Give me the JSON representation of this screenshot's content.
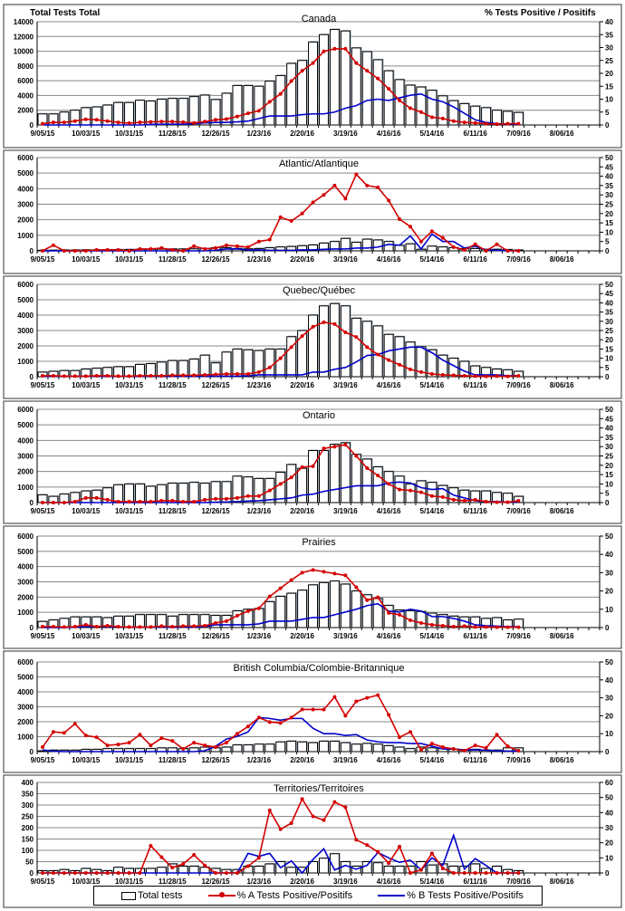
{
  "header": {
    "left_axis_title": "Total Tests Total",
    "right_axis_title": "% Tests Positive / Positifs"
  },
  "legend": {
    "total": "Total tests",
    "a": "% A Tests Positive/Positifs",
    "b": "% B Tests Positive/Positifs"
  },
  "colors": {
    "a": "#d40000",
    "b": "#0000cc",
    "bar": "#ffffff"
  },
  "chart_data": [
    {
      "type": "bar+line",
      "title": "Canada",
      "x_tick_labels": [
        "9/05/15",
        "10/03/15",
        "10/31/15",
        "11/28/15",
        "12/26/15",
        "1/23/16",
        "2/20/16",
        "3/19/16",
        "4/16/16",
        "5/14/16",
        "6/11/16",
        "7/09/16",
        "8/06/16"
      ],
      "weeks_on_axis": 52,
      "ylim": [
        0,
        14000
      ],
      "ystep": 2000,
      "y2lim": [
        0,
        40
      ],
      "y2step": 5,
      "y_tick_labels": [
        "0",
        "2000",
        "4000",
        "6000",
        "8000",
        "10000",
        "12000",
        "14000"
      ],
      "y2_tick_labels": [
        "0",
        "5",
        "10",
        "15",
        "20",
        "25",
        "30",
        "35",
        "40"
      ],
      "total_tests": [
        1500,
        1500,
        1750,
        2000,
        2350,
        2450,
        2700,
        3050,
        3050,
        3350,
        3250,
        3500,
        3600,
        3600,
        3850,
        4050,
        3450,
        4300,
        5350,
        5350,
        5250,
        5950,
        6700,
        8350,
        8750,
        11250,
        12250,
        12950,
        12750,
        10450,
        9950,
        8850,
        7350,
        6150,
        5400,
        5150,
        4700,
        3950,
        3300,
        2900,
        2550,
        2350,
        2000,
        1850,
        1700
      ],
      "pct_a": [
        0.5,
        1,
        1,
        1.5,
        2.2,
        2,
        1.5,
        1,
        0.7,
        1,
        1.2,
        1.3,
        1.3,
        1.1,
        0.8,
        1.3,
        2,
        2.3,
        3.3,
        4.5,
        5.5,
        9,
        12,
        17,
        21,
        24,
        28.5,
        29.5,
        29.5,
        24,
        21,
        18,
        14,
        9.5,
        6.5,
        5,
        3,
        2.5,
        1.5,
        1,
        0.8,
        0.5,
        0.3,
        0.5,
        0.5
      ],
      "pct_b": [
        0,
        0,
        0,
        0,
        0,
        0,
        0,
        0,
        0,
        0,
        0.2,
        0.3,
        0.3,
        0.3,
        0.5,
        0.8,
        1,
        1,
        1.2,
        1.5,
        2.5,
        3.5,
        3.5,
        3.5,
        4,
        4.3,
        4.3,
        5,
        6.5,
        7.5,
        9.5,
        10,
        9.5,
        10.5,
        11.5,
        12,
        10,
        9,
        7,
        4.5,
        2,
        1,
        0.5,
        0.3,
        0.3
      ]
    },
    {
      "type": "bar+line",
      "title": "Atlantic/Atlantique",
      "x_tick_labels": [
        "9/05/15",
        "10/03/15",
        "10/31/15",
        "11/28/15",
        "12/26/15",
        "1/23/16",
        "2/20/16",
        "3/19/16",
        "4/16/16",
        "5/14/16",
        "6/11/16",
        "7/09/16",
        "8/06/16"
      ],
      "weeks_on_axis": 52,
      "ylim": [
        0,
        6000
      ],
      "ystep": 1000,
      "y2lim": [
        0,
        50
      ],
      "y2step": 5,
      "y_tick_labels": [
        "0",
        "1000",
        "2000",
        "3000",
        "4000",
        "5000",
        "6000"
      ],
      "y2_tick_labels": [
        "0",
        "5",
        "10",
        "15",
        "20",
        "25",
        "30",
        "35",
        "40",
        "45",
        "50"
      ],
      "total_tests": [
        30,
        40,
        50,
        50,
        60,
        60,
        70,
        80,
        90,
        100,
        100,
        110,
        120,
        120,
        130,
        150,
        200,
        200,
        150,
        130,
        150,
        200,
        250,
        280,
        330,
        380,
        500,
        600,
        800,
        550,
        750,
        700,
        600,
        350,
        450,
        100,
        300,
        250,
        200,
        150,
        150,
        100,
        100,
        80,
        50
      ],
      "pct_a": [
        0,
        3,
        0,
        0,
        0,
        0.5,
        0.5,
        0.5,
        0,
        1,
        1,
        1.5,
        0.5,
        0,
        2.5,
        1,
        1.5,
        3,
        2.5,
        2,
        5,
        6,
        18,
        16,
        20,
        26,
        30,
        35,
        28,
        41,
        35,
        34,
        27,
        17,
        13,
        5,
        10.5,
        7,
        2,
        0.5,
        3.5,
        0,
        3.5,
        0,
        0
      ],
      "pct_b": [
        0,
        0,
        0,
        0,
        0,
        0,
        0,
        0,
        0,
        0,
        0,
        0,
        0,
        0,
        0,
        0,
        0.3,
        1,
        1,
        0.5,
        0.5,
        0.3,
        0.3,
        0.3,
        0.5,
        0.5,
        0.8,
        1,
        1,
        1.5,
        1.5,
        2,
        3.5,
        3,
        8,
        1,
        9,
        5,
        5,
        1.5,
        2.5,
        0.5,
        0.3,
        0,
        0
      ]
    },
    {
      "type": "bar+line",
      "title": "Quebec/Québec",
      "x_tick_labels": [
        "9/05/15",
        "10/03/15",
        "10/31/15",
        "11/28/15",
        "12/26/15",
        "1/23/16",
        "2/20/16",
        "3/19/16",
        "4/16/16",
        "5/14/16",
        "6/11/16",
        "7/09/16",
        "8/06/16"
      ],
      "weeks_on_axis": 52,
      "ylim": [
        0,
        6000
      ],
      "ystep": 1000,
      "y2lim": [
        0,
        50
      ],
      "y2step": 5,
      "y_tick_labels": [
        "0",
        "1000",
        "2000",
        "3000",
        "4000",
        "5000",
        "6000"
      ],
      "y2_tick_labels": [
        "0",
        "5",
        "10",
        "15",
        "20",
        "25",
        "30",
        "35",
        "40",
        "45",
        "50"
      ],
      "total_tests": [
        300,
        350,
        400,
        400,
        500,
        550,
        600,
        650,
        650,
        800,
        850,
        950,
        1050,
        1050,
        1150,
        1400,
        900,
        1600,
        1800,
        1750,
        1700,
        1800,
        1800,
        2600,
        3000,
        4000,
        4600,
        4750,
        4600,
        3800,
        3600,
        3300,
        2750,
        2600,
        2250,
        1950,
        1750,
        1400,
        1200,
        1000,
        700,
        600,
        500,
        450,
        350
      ],
      "pct_a": [
        0.5,
        0.5,
        0.3,
        0.3,
        0.3,
        0.5,
        0.5,
        0.3,
        0.3,
        0.5,
        0.5,
        0.5,
        0.8,
        0.8,
        0.8,
        1,
        1.2,
        1.5,
        1.5,
        1.5,
        2.5,
        5,
        10,
        16,
        22,
        27,
        29.5,
        28.5,
        24,
        21.5,
        16,
        12,
        9,
        6.5,
        4,
        2.5,
        1.5,
        1,
        0.8,
        0.5,
        0.3,
        0.2,
        0.3,
        0.2,
        0.5
      ],
      "pct_b": [
        0.2,
        0.2,
        0.2,
        0.2,
        0.2,
        0.2,
        0.2,
        0.2,
        0.2,
        0.2,
        0.3,
        0.3,
        0.3,
        0.3,
        0.3,
        0.3,
        0.3,
        0.3,
        0.3,
        0.5,
        1,
        1,
        1,
        1,
        1,
        2.5,
        2.5,
        4,
        5,
        8,
        11.5,
        12,
        14,
        15,
        16,
        16,
        13,
        9,
        6,
        3,
        1,
        1,
        1,
        0.5,
        0.5
      ]
    },
    {
      "type": "bar+line",
      "title": "Ontario",
      "x_tick_labels": [
        "9/05/15",
        "10/03/15",
        "10/31/15",
        "11/28/15",
        "12/26/15",
        "1/23/16",
        "2/20/16",
        "3/19/16",
        "4/16/16",
        "5/14/16",
        "6/11/16",
        "7/09/16",
        "8/06/16"
      ],
      "weeks_on_axis": 52,
      "ylim": [
        0,
        6000
      ],
      "ystep": 1000,
      "y2lim": [
        0,
        50
      ],
      "y2step": 5,
      "y_tick_labels": [
        "0",
        "1000",
        "2000",
        "3000",
        "4000",
        "5000",
        "6000"
      ],
      "y2_tick_labels": [
        "0",
        "5",
        "10",
        "15",
        "20",
        "25",
        "30",
        "35",
        "40",
        "45",
        "50"
      ],
      "total_tests": [
        500,
        400,
        550,
        650,
        750,
        800,
        950,
        1150,
        1200,
        1200,
        1050,
        1150,
        1250,
        1250,
        1300,
        1250,
        1350,
        1350,
        1700,
        1650,
        1550,
        1550,
        1950,
        2450,
        2200,
        3350,
        3350,
        3750,
        3850,
        3100,
        2800,
        2300,
        2000,
        1700,
        1200,
        1400,
        1300,
        1100,
        950,
        800,
        750,
        750,
        650,
        600,
        400
      ],
      "pct_a": [
        0,
        0,
        0,
        0.5,
        2.5,
        2.5,
        1.5,
        0.5,
        0.5,
        0.5,
        0.5,
        1,
        1,
        0.5,
        0.5,
        1.5,
        2,
        2,
        2.5,
        3.5,
        3.5,
        6.5,
        10,
        13.5,
        19,
        19.5,
        29,
        30,
        31,
        25,
        18.5,
        14.5,
        10,
        7,
        6.5,
        5.5,
        3.5,
        3,
        1.5,
        1,
        1.5,
        0.5,
        0.2,
        0.2,
        1
      ],
      "pct_b": [
        0,
        0,
        0,
        0,
        0,
        0,
        0,
        0,
        0,
        0,
        0,
        0,
        0,
        0,
        0,
        0,
        0.2,
        0.3,
        0.5,
        0.8,
        1,
        1.5,
        2,
        2.5,
        4,
        4.5,
        6,
        7,
        8,
        9,
        9,
        9,
        10.5,
        11,
        10.5,
        8,
        7,
        7.5,
        4,
        2.5,
        1,
        0.5,
        0.5,
        0.3,
        0.3
      ]
    },
    {
      "type": "bar+line",
      "title": "Prairies",
      "x_tick_labels": [
        "9/05/15",
        "10/03/15",
        "10/31/15",
        "11/28/15",
        "12/26/15",
        "1/23/16",
        "2/20/16",
        "3/19/16",
        "4/16/16",
        "5/14/16",
        "6/11/16",
        "7/09/16",
        "8/06/16"
      ],
      "weeks_on_axis": 52,
      "ylim": [
        0,
        6000
      ],
      "ystep": 1000,
      "y2lim": [
        0,
        50
      ],
      "y2step": 10,
      "y_tick_labels": [
        "0",
        "1000",
        "2000",
        "3000",
        "4000",
        "5000",
        "6000"
      ],
      "y2_tick_labels": [
        "0",
        "10",
        "20",
        "30",
        "40",
        "50"
      ],
      "total_tests": [
        400,
        500,
        600,
        700,
        700,
        700,
        650,
        750,
        750,
        850,
        850,
        850,
        750,
        850,
        850,
        850,
        800,
        800,
        1100,
        1200,
        1250,
        1700,
        2050,
        2250,
        2450,
        2800,
        2950,
        3050,
        2850,
        2400,
        2150,
        1900,
        1450,
        1150,
        1100,
        1050,
        950,
        850,
        750,
        700,
        700,
        600,
        650,
        500,
        550
      ],
      "pct_a": [
        0.5,
        0.5,
        0.3,
        0.5,
        1.5,
        0.5,
        1,
        0.5,
        0.3,
        0.3,
        0.3,
        0.8,
        0.5,
        0.8,
        0.8,
        1,
        2.5,
        3.5,
        6.5,
        9,
        10.5,
        17,
        21.5,
        26,
        30,
        31.5,
        30.5,
        29.5,
        28.5,
        22,
        15,
        16.5,
        8,
        7,
        4,
        2.5,
        1.5,
        1,
        0.5,
        0.8,
        0.3,
        0.3,
        0.2,
        0.2,
        0.2
      ],
      "pct_b": [
        0,
        0,
        0,
        0.3,
        0.5,
        0.5,
        0.5,
        0.3,
        0.3,
        0.3,
        0.3,
        0.3,
        0.3,
        0.3,
        0.3,
        0.5,
        1.5,
        1.5,
        1.5,
        1.5,
        2,
        3.5,
        3.5,
        3.5,
        4.5,
        5.5,
        5.5,
        7,
        8.5,
        10,
        12,
        13,
        9,
        8.5,
        10,
        9,
        6,
        6,
        5,
        3.5,
        1.5,
        1,
        0.8,
        0.5,
        0.5
      ]
    },
    {
      "type": "bar+line",
      "title": "British Columbia/Colombie-Britannique",
      "x_tick_labels": [
        "9/05/15",
        "10/03/15",
        "10/31/15",
        "11/28/15",
        "12/26/15",
        "1/23/16",
        "2/20/16",
        "3/19/16",
        "4/16/16",
        "5/14/16",
        "6/11/16",
        "7/09/16",
        "8/06/16"
      ],
      "weeks_on_axis": 52,
      "ylim": [
        0,
        6000
      ],
      "ystep": 1000,
      "y2lim": [
        0,
        50
      ],
      "y2step": 10,
      "y_tick_labels": [
        "0",
        "1000",
        "2000",
        "3000",
        "4000",
        "5000",
        "6000"
      ],
      "y2_tick_labels": [
        "0",
        "10",
        "20",
        "30",
        "40",
        "50"
      ],
      "total_tests": [
        50,
        100,
        100,
        100,
        150,
        150,
        200,
        200,
        200,
        200,
        200,
        250,
        250,
        200,
        250,
        300,
        250,
        300,
        450,
        450,
        500,
        500,
        650,
        700,
        650,
        600,
        700,
        700,
        600,
        500,
        550,
        500,
        400,
        300,
        200,
        300,
        250,
        200,
        150,
        100,
        150,
        100,
        100,
        250,
        250
      ],
      "pct_a": [
        2.5,
        11,
        10.5,
        15.5,
        9,
        8,
        3.5,
        4,
        5,
        9.5,
        3.5,
        7.5,
        6,
        1.5,
        5,
        3.5,
        2.5,
        5,
        10,
        14,
        19,
        16.5,
        16,
        19,
        23.5,
        23.5,
        23.5,
        30.5,
        20,
        28,
        30,
        31.5,
        20.5,
        8,
        11,
        1,
        4.5,
        2.5,
        1.5,
        0.5,
        3.5,
        2,
        9.5,
        3,
        0.5
      ],
      "pct_b": [
        1,
        0.2,
        0,
        0,
        0,
        0,
        0,
        0,
        0,
        0,
        0,
        0,
        0,
        0,
        0,
        0.5,
        3,
        7,
        8.5,
        11,
        19,
        18.5,
        17.5,
        18.5,
        18.5,
        13,
        10,
        10,
        9,
        9.5,
        6.5,
        5.5,
        5,
        5,
        4.5,
        4.5,
        3,
        1.5,
        1.5,
        1,
        1,
        0.8,
        0.5,
        0.3,
        0.2
      ]
    },
    {
      "type": "bar+line",
      "title": "Territories/Territoires",
      "x_tick_labels": [
        "9/05/15",
        "10/03/15",
        "10/31/15",
        "11/28/15",
        "12/26/15",
        "1/23/16",
        "2/20/16",
        "3/19/16",
        "4/16/16",
        "5/14/16",
        "6/11/16",
        "7/09/16",
        "8/06/16"
      ],
      "weeks_on_axis": 52,
      "ylim": [
        0,
        400
      ],
      "ystep": 50,
      "y2lim": [
        0,
        60
      ],
      "y2step": 10,
      "y_tick_labels": [
        "0",
        "50",
        "100",
        "150",
        "200",
        "250",
        "300",
        "350",
        "400"
      ],
      "y2_tick_labels": [
        "0",
        "10",
        "20",
        "30",
        "40",
        "50",
        "60"
      ],
      "total_tests": [
        10,
        10,
        15,
        10,
        20,
        15,
        10,
        25,
        20,
        20,
        20,
        25,
        40,
        30,
        30,
        25,
        20,
        15,
        15,
        30,
        30,
        40,
        50,
        25,
        25,
        50,
        65,
        85,
        50,
        30,
        50,
        45,
        30,
        30,
        30,
        50,
        35,
        40,
        30,
        30,
        40,
        20,
        30,
        15,
        10
      ],
      "pct_a": [
        0,
        0,
        0,
        0,
        0,
        0,
        0,
        0,
        0,
        0,
        18,
        10.5,
        3.5,
        6,
        12,
        5,
        0,
        0,
        0,
        4.5,
        10,
        41.5,
        29,
        33,
        49,
        37.5,
        35,
        47,
        43.5,
        22,
        18.5,
        14,
        6.5,
        17.5,
        0,
        2,
        13,
        3,
        0,
        0,
        0,
        0,
        0,
        0,
        0
      ],
      "pct_b": [
        0,
        0,
        0,
        0,
        0,
        0,
        0,
        0,
        0,
        0,
        0,
        0,
        0,
        0,
        0,
        0,
        0,
        0,
        0,
        13,
        11,
        13,
        3.5,
        8,
        0,
        9,
        16,
        2,
        5,
        2.5,
        5,
        13.5,
        10,
        7,
        8.5,
        2,
        10,
        5,
        25,
        2.5,
        9.5,
        5,
        0,
        0,
        0
      ]
    }
  ]
}
